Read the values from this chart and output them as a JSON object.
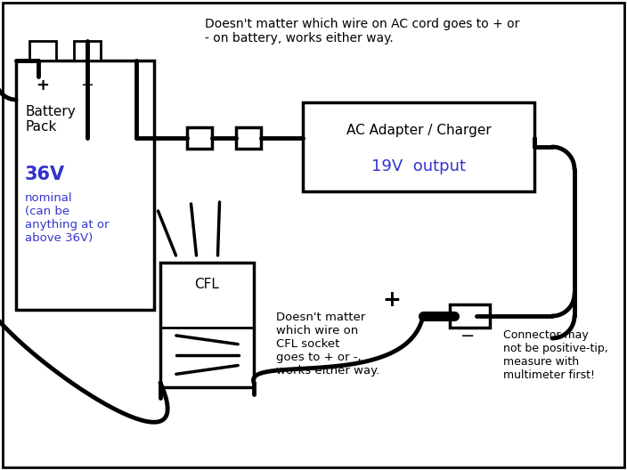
{
  "bg_color": "#ffffff",
  "line_color": "#000000",
  "blue_color": "#3333cc",
  "lw": 3.5,
  "top_note": "Doesn't matter which wire on AC cord goes to + or\n- on battery, works either way.",
  "bottom_note": "Doesn't matter\nwhich wire on\nCFL socket\ngoes to + or -,\nworks either way.",
  "connector_note": "Connector may\nnot be positive-tip,\nmeasure with\nmultimeter first!",
  "battery_label": "Battery\nPack",
  "battery_voltage": "36V",
  "battery_nominal": "nominal\n(can be\nanything at or\nabove 36V)",
  "ac_line1": "AC Adapter / Charger",
  "ac_line2": "19V  output",
  "cfl_label": "CFL"
}
